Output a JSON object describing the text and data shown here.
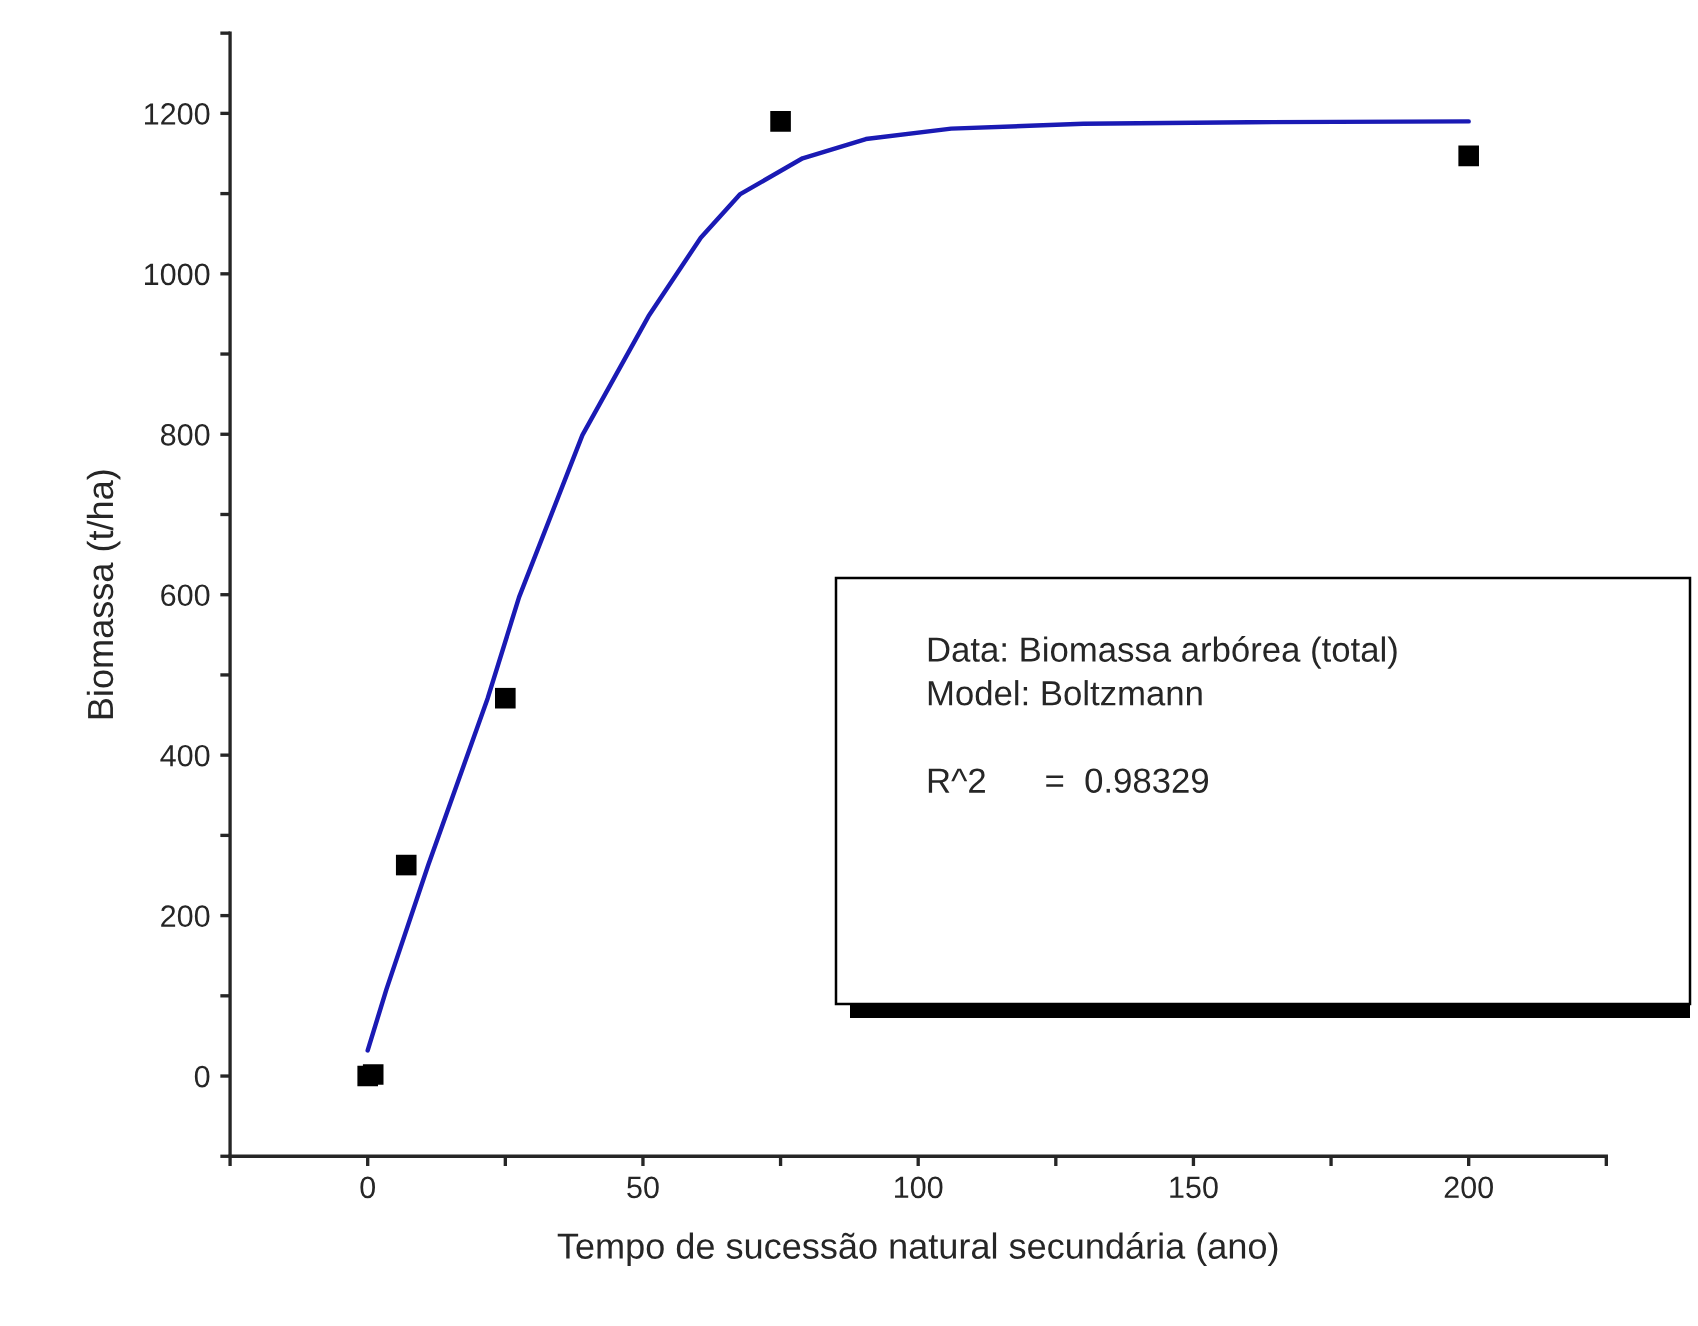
{
  "chart_data": {
    "type": "scatter",
    "xlabel": "Tempo de sucessão natural secundária (ano)",
    "ylabel": "Biomassa (t/ha)",
    "series": [
      {
        "type": "scatter",
        "color": "#000000",
        "marker": "square",
        "x": [
          0,
          1,
          7,
          25,
          75,
          200
        ],
        "values": [
          0,
          2,
          263,
          471,
          1190,
          1147
        ]
      },
      {
        "type": "line",
        "color": "#1a1ab4",
        "marker": "none",
        "line_style": "solid",
        "x": [
          0,
          3.4,
          11,
          21.8,
          27.5,
          39,
          51,
          60.5,
          67.6,
          79,
          90.5,
          106,
          130,
          160,
          200
        ],
        "values": [
          32,
          108,
          263,
          471,
          597,
          799,
          947,
          1045,
          1099,
          1144,
          1168,
          1181,
          1187,
          1189,
          1190
        ]
      }
    ],
    "xlim": [
      -25,
      225
    ],
    "xticks": [
      {
        "value": -25,
        "label": null
      },
      0,
      {
        "value": 25,
        "label": null
      },
      50,
      {
        "value": 75,
        "label": null
      },
      100,
      {
        "value": 125,
        "label": null
      },
      150,
      {
        "value": 175,
        "label": null
      },
      200,
      {
        "value": 225,
        "label": null
      }
    ],
    "ylim": [
      -100,
      1300
    ],
    "yticks": [
      {
        "value": -100,
        "label": null
      },
      0,
      {
        "value": 100,
        "label": null
      },
      200,
      {
        "value": 300,
        "label": null
      },
      400,
      {
        "value": 500,
        "label": null
      },
      600,
      {
        "value": 700,
        "label": null
      },
      800,
      {
        "value": 900,
        "label": null
      },
      1000,
      {
        "value": 1100,
        "label": null
      },
      1200,
      {
        "value": 1300,
        "label": null
      }
    ],
    "grid": false,
    "legend": false,
    "annotations": [
      "Data: Biomassa arbórea (total)\nModel: Boltzmann\n\nR^2      =  0.98329"
    ]
  }
}
